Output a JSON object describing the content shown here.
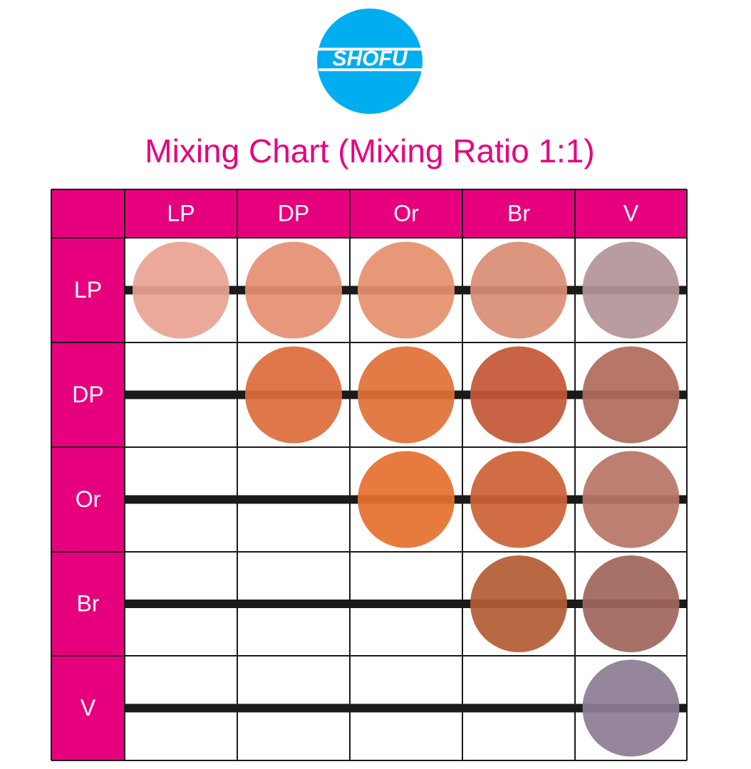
{
  "logo": "SHOFU",
  "title": "Mixing Chart (Mixing Ratio 1:1)",
  "table": {
    "columns": [
      "LP",
      "DP",
      "Or",
      "Br",
      "V"
    ],
    "rows": [
      "LP",
      "DP",
      "Or",
      "Br",
      "V"
    ]
  }
}
